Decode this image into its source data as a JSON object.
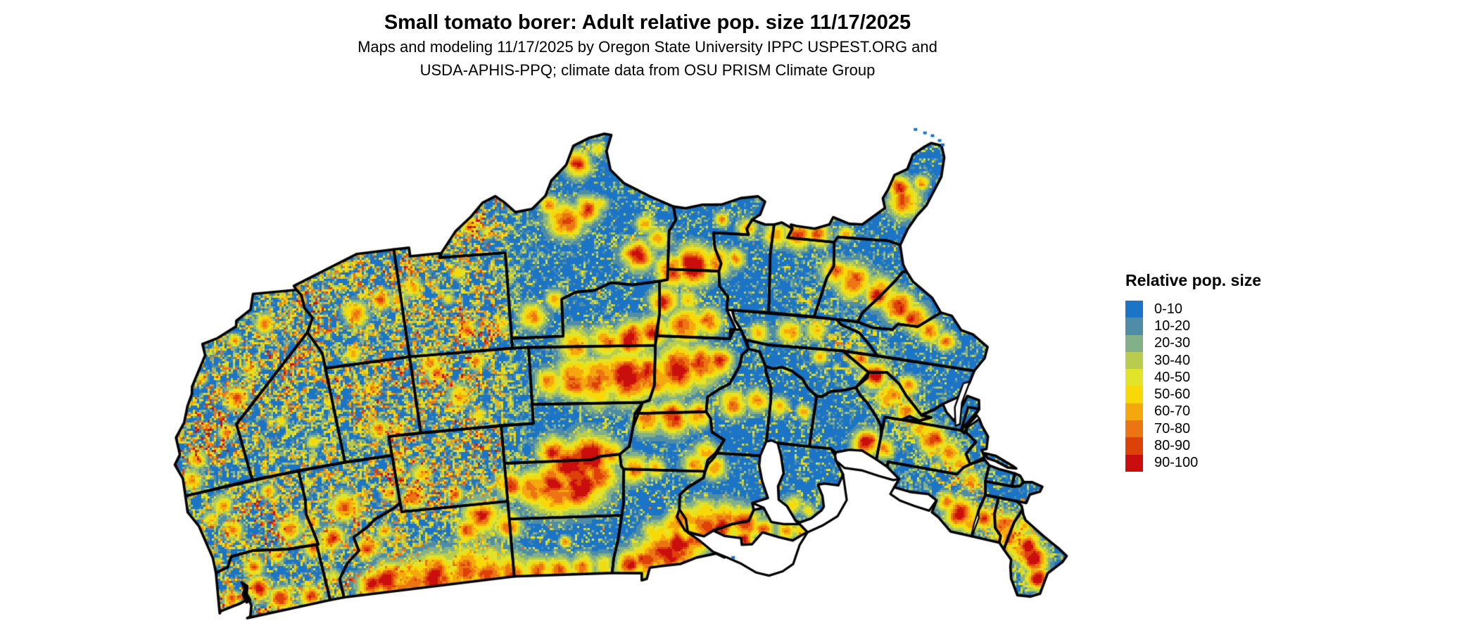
{
  "header": {
    "title": "Small tomato borer: Adult relative pop. size 11/17/2025",
    "subtitle_line1": "Maps and modeling 11/17/2025 by Oregon State University IPPC USPEST.ORG and",
    "subtitle_line2": "USDA-APHIS-PPQ; climate data from OSU PRISM Climate Group"
  },
  "legend": {
    "title": "Relative pop. size"
  },
  "chart_data": {
    "type": "heatmap",
    "title": "Small tomato borer: Adult relative pop. size 11/17/2025",
    "region": "Continental United States",
    "legend_title": "Relative pop. size",
    "categories": [
      "0-10",
      "10-20",
      "20-30",
      "30-40",
      "40-50",
      "50-60",
      "60-70",
      "70-80",
      "80-90",
      "90-100"
    ],
    "colors": [
      "#1b74c6",
      "#4f8da6",
      "#84b089",
      "#b8cd4d",
      "#e2e32b",
      "#f8d806",
      "#f5a80e",
      "#ec7413",
      "#dd4108",
      "#ca0d0d"
    ],
    "base_color": "#1b74c6",
    "water_color": "#ffffff",
    "border_color": "#000000",
    "value_range": [
      0,
      100
    ],
    "hotspots": [
      [
        -114.0,
        48.7,
        16,
        82
      ],
      [
        -112.8,
        48.5,
        20,
        80
      ],
      [
        -111.3,
        48.8,
        24,
        84
      ],
      [
        -109.5,
        48.8,
        26,
        86
      ],
      [
        -107.5,
        48.7,
        26,
        84
      ],
      [
        -105.8,
        48.8,
        24,
        86
      ],
      [
        -104.3,
        48.8,
        20,
        80
      ],
      [
        -102.5,
        48.8,
        16,
        70
      ],
      [
        -100.9,
        48.8,
        15,
        72
      ],
      [
        -99.2,
        48.7,
        14,
        66
      ],
      [
        -97.8,
        48.6,
        12,
        60
      ],
      [
        -100.4,
        47.3,
        6,
        62
      ],
      [
        -95.9,
        48.5,
        16,
        74
      ],
      [
        -94.8,
        48.2,
        20,
        82
      ],
      [
        -93.6,
        47.9,
        24,
        90
      ],
      [
        -92.6,
        47.5,
        22,
        92
      ],
      [
        -91.8,
        47.1,
        18,
        88
      ],
      [
        -94.3,
        46.9,
        14,
        62
      ],
      [
        -93.2,
        46.5,
        12,
        58
      ],
      [
        -92.3,
        46.2,
        16,
        80
      ],
      [
        -91.0,
        46.3,
        22,
        88
      ],
      [
        -89.8,
        46.2,
        20,
        84
      ],
      [
        -88.6,
        46.1,
        18,
        80
      ],
      [
        -88.4,
        47.0,
        12,
        76
      ],
      [
        -87.0,
        46.3,
        12,
        68
      ],
      [
        -85.5,
        46.3,
        12,
        64
      ],
      [
        -84.6,
        46.2,
        10,
        60
      ],
      [
        -85.3,
        44.9,
        10,
        58
      ],
      [
        -84.3,
        45.1,
        8,
        54
      ],
      [
        -83.3,
        44.2,
        7,
        50
      ],
      [
        -103.8,
        44.2,
        14,
        78
      ],
      [
        -102.3,
        44.4,
        18,
        80
      ],
      [
        -100.8,
        44.5,
        26,
        90
      ],
      [
        -99.3,
        44.3,
        26,
        92
      ],
      [
        -98.0,
        43.9,
        18,
        80
      ],
      [
        -99.9,
        43.3,
        22,
        88
      ],
      [
        -98.6,
        42.9,
        24,
        92
      ],
      [
        -100.9,
        42.5,
        16,
        72
      ],
      [
        -97.4,
        42.7,
        14,
        76
      ],
      [
        -105.8,
        45.6,
        18,
        78
      ],
      [
        -104.2,
        46.2,
        14,
        74
      ],
      [
        -106.9,
        46.3,
        12,
        68
      ],
      [
        -95.8,
        43.5,
        14,
        72
      ],
      [
        -94.4,
        43.4,
        10,
        62
      ],
      [
        -91.8,
        43.1,
        14,
        74
      ],
      [
        -90.7,
        43.3,
        12,
        72
      ],
      [
        -91.3,
        42.5,
        12,
        70
      ],
      [
        -94.9,
        40.9,
        16,
        78
      ],
      [
        -93.4,
        40.8,
        18,
        80
      ],
      [
        -92.0,
        40.6,
        14,
        74
      ],
      [
        -100.9,
        38.9,
        14,
        66
      ],
      [
        -99.4,
        38.8,
        20,
        80
      ],
      [
        -97.9,
        38.9,
        24,
        88
      ],
      [
        -96.3,
        38.7,
        26,
        90
      ],
      [
        -94.8,
        38.5,
        22,
        88
      ],
      [
        -93.3,
        38.2,
        24,
        90
      ],
      [
        -91.9,
        38.0,
        20,
        84
      ],
      [
        -90.8,
        37.7,
        14,
        76
      ],
      [
        -99.3,
        36.9,
        16,
        78
      ],
      [
        -97.6,
        36.8,
        16,
        78
      ],
      [
        -96.0,
        36.7,
        18,
        84
      ],
      [
        -94.8,
        36.3,
        16,
        80
      ],
      [
        -92.9,
        35.9,
        18,
        84
      ],
      [
        -91.6,
        35.7,
        14,
        76
      ],
      [
        -94.2,
        34.7,
        14,
        78
      ],
      [
        -92.8,
        34.6,
        10,
        64
      ],
      [
        -93.8,
        33.0,
        16,
        82
      ],
      [
        -92.6,
        32.8,
        20,
        90
      ],
      [
        -91.3,
        32.6,
        14,
        80
      ],
      [
        -90.3,
        32.3,
        10,
        62
      ],
      [
        -95.7,
        32.3,
        16,
        78
      ],
      [
        -94.6,
        31.4,
        12,
        70
      ],
      [
        -95.3,
        30.7,
        10,
        64
      ],
      [
        -99.6,
        30.4,
        18,
        82
      ],
      [
        -98.5,
        29.9,
        14,
        80
      ],
      [
        -100.5,
        29.6,
        10,
        66
      ],
      [
        -97.7,
        29.6,
        8,
        56
      ],
      [
        -98.9,
        27.5,
        14,
        74
      ],
      [
        -97.9,
        26.7,
        8,
        58
      ],
      [
        -101.7,
        35.4,
        14,
        74
      ],
      [
        -100.4,
        34.6,
        10,
        64
      ],
      [
        -103.5,
        35.8,
        8,
        56
      ],
      [
        -104.8,
        30.4,
        10,
        66
      ],
      [
        -103.9,
        30.9,
        7,
        56
      ],
      [
        -91.2,
        30.3,
        8,
        56
      ],
      [
        -89.8,
        30.7,
        10,
        68
      ],
      [
        -88.3,
        30.9,
        12,
        76
      ],
      [
        -87.1,
        30.8,
        14,
        82
      ],
      [
        -85.9,
        30.7,
        12,
        78
      ],
      [
        -84.5,
        30.5,
        8,
        60
      ],
      [
        -84.8,
        32.6,
        14,
        74
      ],
      [
        -83.6,
        32.9,
        18,
        84
      ],
      [
        -82.2,
        33.3,
        16,
        82
      ],
      [
        -81.0,
        33.9,
        16,
        82
      ],
      [
        -79.9,
        34.4,
        14,
        78
      ],
      [
        -78.9,
        34.9,
        12,
        72
      ],
      [
        -77.9,
        35.3,
        10,
        64
      ],
      [
        -81.6,
        28.5,
        16,
        80
      ],
      [
        -82.1,
        27.7,
        12,
        72
      ],
      [
        -81.0,
        27.3,
        8,
        58
      ],
      [
        -88.6,
        36.1,
        10,
        64
      ],
      [
        -86.9,
        35.9,
        12,
        68
      ],
      [
        -85.4,
        35.7,
        10,
        64
      ],
      [
        -84.9,
        37.0,
        8,
        56
      ],
      [
        -89.8,
        39.9,
        14,
        76
      ],
      [
        -88.4,
        39.6,
        12,
        72
      ],
      [
        -87.0,
        39.8,
        10,
        66
      ],
      [
        -85.4,
        40.0,
        8,
        58
      ],
      [
        -81.3,
        41.2,
        14,
        80
      ],
      [
        -80.2,
        41.4,
        10,
        68
      ],
      [
        -81.6,
        37.7,
        14,
        78
      ],
      [
        -80.4,
        38.6,
        14,
        76
      ],
      [
        -79.3,
        39.3,
        12,
        74
      ],
      [
        -78.2,
        39.9,
        12,
        72
      ],
      [
        -77.3,
        40.5,
        14,
        76
      ],
      [
        -76.2,
        41.0,
        12,
        70
      ],
      [
        -75.3,
        41.4,
        10,
        66
      ],
      [
        -79.5,
        37.9,
        10,
        68
      ],
      [
        -82.6,
        36.9,
        10,
        66
      ],
      [
        -75.6,
        43.5,
        10,
        70
      ],
      [
        -74.4,
        44.0,
        16,
        84
      ],
      [
        -73.7,
        44.4,
        10,
        72
      ],
      [
        -74.3,
        42.2,
        10,
        66
      ],
      [
        -72.9,
        43.9,
        12,
        78
      ],
      [
        -71.5,
        44.1,
        14,
        84
      ],
      [
        -70.8,
        44.6,
        14,
        84
      ],
      [
        -69.8,
        45.0,
        16,
        88
      ],
      [
        -68.9,
        45.4,
        14,
        86
      ],
      [
        -68.3,
        46.3,
        12,
        78
      ],
      [
        -70.3,
        43.9,
        8,
        60
      ],
      [
        -123.6,
        47.8,
        8,
        70
      ],
      [
        -121.6,
        47.6,
        12,
        78
      ],
      [
        -121.5,
        46.4,
        10,
        74
      ],
      [
        -120.3,
        48.4,
        12,
        76
      ],
      [
        -118.3,
        48.6,
        12,
        72
      ],
      [
        -117.3,
        46.1,
        10,
        68
      ],
      [
        -119.8,
        46.1,
        8,
        58
      ],
      [
        -123.3,
        43.5,
        8,
        62
      ],
      [
        -122.1,
        44.3,
        10,
        70
      ],
      [
        -122.3,
        42.9,
        10,
        68
      ],
      [
        -118.4,
        44.9,
        12,
        74
      ],
      [
        -117.0,
        44.8,
        8,
        62
      ],
      [
        -119.2,
        42.8,
        8,
        58
      ],
      [
        -115.9,
        45.8,
        12,
        74
      ],
      [
        -114.7,
        44.3,
        14,
        78
      ],
      [
        -113.7,
        46.6,
        12,
        74
      ],
      [
        -112.4,
        45.9,
        8,
        62
      ],
      [
        -111.6,
        44.0,
        8,
        60
      ],
      [
        -116.5,
        47.8,
        8,
        62
      ],
      [
        -110.1,
        44.3,
        12,
        74
      ],
      [
        -109.4,
        43.1,
        10,
        70
      ],
      [
        -107.4,
        44.4,
        8,
        64
      ],
      [
        -110.8,
        42.8,
        7,
        56
      ],
      [
        -111.6,
        40.6,
        10,
        70
      ],
      [
        -110.4,
        40.8,
        8,
        62
      ],
      [
        -111.5,
        38.4,
        8,
        58
      ],
      [
        -106.3,
        39.3,
        12,
        68
      ],
      [
        -107.6,
        38.0,
        10,
        66
      ],
      [
        -105.4,
        40.4,
        8,
        60
      ],
      [
        -105.2,
        37.6,
        8,
        60
      ],
      [
        -107.9,
        37.4,
        10,
        68
      ],
      [
        -115.7,
        40.7,
        7,
        52
      ],
      [
        -117.3,
        39.3,
        6,
        48
      ],
      [
        -114.2,
        38.8,
        6,
        48
      ],
      [
        -122.9,
        40.3,
        10,
        70
      ],
      [
        -123.6,
        41.3,
        10,
        72
      ],
      [
        -120.7,
        39.3,
        8,
        64
      ],
      [
        -119.6,
        37.7,
        12,
        72
      ],
      [
        -118.3,
        36.3,
        8,
        60
      ],
      [
        -116.9,
        34.2,
        10,
        72
      ],
      [
        -118.8,
        34.7,
        7,
        58
      ],
      [
        -121.2,
        36.3,
        6,
        50
      ],
      [
        -112.3,
        36.5,
        8,
        62
      ],
      [
        -111.7,
        34.4,
        12,
        76
      ],
      [
        -110.2,
        33.9,
        10,
        70
      ],
      [
        -109.2,
        34.0,
        8,
        60
      ],
      [
        -108.4,
        33.4,
        10,
        70
      ],
      [
        -105.6,
        35.9,
        10,
        68
      ],
      [
        -106.4,
        34.2,
        6,
        52
      ],
      [
        -105.7,
        32.9,
        7,
        56
      ]
    ]
  }
}
